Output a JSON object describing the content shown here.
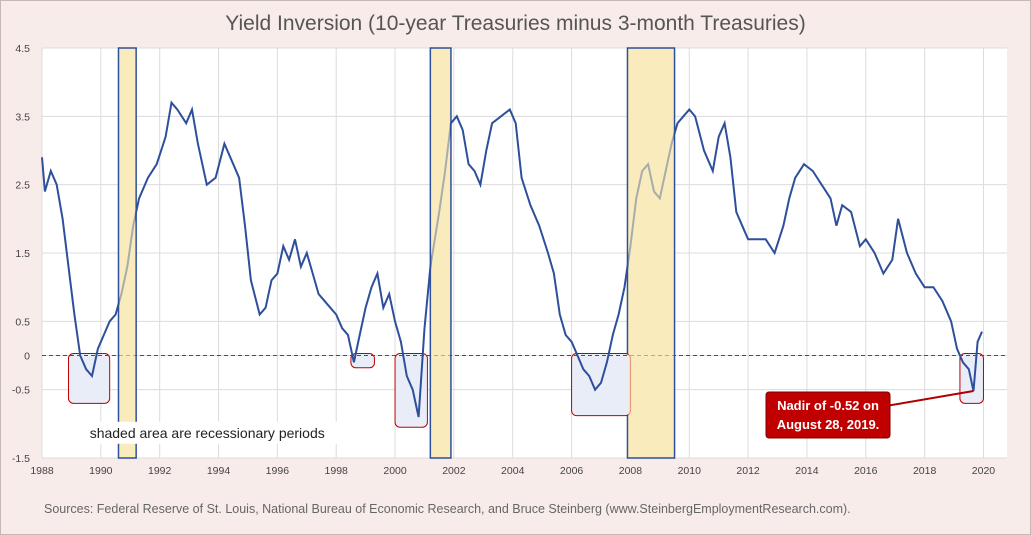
{
  "chart_data": {
    "type": "line",
    "title": "Yield Inversion (10-year Treasuries minus 3-month Treasuries)",
    "xlabel": "",
    "ylabel": "",
    "xlim": [
      1988,
      2020.8
    ],
    "ylim": [
      -1.5,
      4.5
    ],
    "y_ticks": [
      "4.5",
      "3.5",
      "2.5",
      "1.5",
      "0.5",
      "0",
      "-0.5",
      "-1.5"
    ],
    "y_tick_values": [
      4.5,
      3.5,
      2.5,
      1.5,
      0.5,
      0,
      -0.5,
      -1.5
    ],
    "x_ticks": [
      "1988",
      "1990",
      "1992",
      "1994",
      "1996",
      "1998",
      "2000",
      "2002",
      "2004",
      "2006",
      "2008",
      "2010",
      "2012",
      "2014",
      "2016",
      "2018",
      "2020"
    ],
    "grid": true,
    "series": [
      {
        "color": "#2e4f9a",
        "x": [
          1988.0,
          1988.1,
          1988.3,
          1988.5,
          1988.7,
          1988.9,
          1989.1,
          1989.3,
          1989.5,
          1989.7,
          1989.9,
          1990.1,
          1990.3,
          1990.5,
          1990.7,
          1990.9,
          1991.1,
          1991.3,
          1991.6,
          1991.9,
          1992.2,
          1992.4,
          1992.6,
          1992.9,
          1993.1,
          1993.3,
          1993.6,
          1993.9,
          1994.2,
          1994.4,
          1994.7,
          1994.9,
          1995.1,
          1995.4,
          1995.6,
          1995.8,
          1996.0,
          1996.2,
          1996.4,
          1996.6,
          1996.8,
          1997.0,
          1997.2,
          1997.4,
          1997.6,
          1997.8,
          1998.0,
          1998.2,
          1998.4,
          1998.6,
          1998.8,
          1999.0,
          1999.2,
          1999.4,
          1999.6,
          1999.8,
          2000.0,
          2000.2,
          2000.4,
          2000.6,
          2000.8,
          2001.0,
          2001.2,
          2001.5,
          2001.7,
          2001.9,
          2002.1,
          2002.3,
          2002.5,
          2002.7,
          2002.9,
          2003.1,
          2003.3,
          2003.6,
          2003.9,
          2004.1,
          2004.3,
          2004.6,
          2004.9,
          2005.2,
          2005.4,
          2005.6,
          2005.8,
          2006.0,
          2006.2,
          2006.4,
          2006.6,
          2006.8,
          2007.0,
          2007.2,
          2007.4,
          2007.6,
          2007.8,
          2008.0,
          2008.2,
          2008.4,
          2008.6,
          2008.8,
          2009.0,
          2009.2,
          2009.4,
          2009.6,
          2009.8,
          2010.0,
          2010.2,
          2010.5,
          2010.8,
          2011.0,
          2011.2,
          2011.4,
          2011.6,
          2011.8,
          2012.0,
          2012.3,
          2012.6,
          2012.9,
          2013.2,
          2013.4,
          2013.6,
          2013.9,
          2014.2,
          2014.5,
          2014.8,
          2015.0,
          2015.2,
          2015.5,
          2015.8,
          2016.0,
          2016.3,
          2016.6,
          2016.9,
          2017.1,
          2017.4,
          2017.7,
          2018.0,
          2018.3,
          2018.6,
          2018.9,
          2019.1,
          2019.3,
          2019.5,
          2019.66,
          2019.8,
          2019.95
        ],
        "y": [
          2.9,
          2.4,
          2.7,
          2.5,
          2.0,
          1.3,
          0.6,
          0.0,
          -0.2,
          -0.3,
          0.1,
          0.3,
          0.5,
          0.6,
          0.9,
          1.3,
          1.9,
          2.3,
          2.6,
          2.8,
          3.2,
          3.7,
          3.6,
          3.4,
          3.6,
          3.1,
          2.5,
          2.6,
          3.1,
          2.9,
          2.6,
          1.9,
          1.1,
          0.6,
          0.7,
          1.1,
          1.2,
          1.6,
          1.4,
          1.7,
          1.3,
          1.5,
          1.2,
          0.9,
          0.8,
          0.7,
          0.6,
          0.4,
          0.3,
          -0.1,
          0.3,
          0.7,
          1.0,
          1.2,
          0.7,
          0.9,
          0.5,
          0.2,
          -0.3,
          -0.5,
          -0.9,
          0.4,
          1.3,
          2.1,
          2.7,
          3.4,
          3.5,
          3.3,
          2.8,
          2.7,
          2.5,
          3.0,
          3.4,
          3.5,
          3.6,
          3.4,
          2.6,
          2.2,
          1.9,
          1.5,
          1.2,
          0.6,
          0.3,
          0.2,
          0.0,
          -0.2,
          -0.3,
          -0.5,
          -0.4,
          -0.1,
          0.3,
          0.6,
          1.0,
          1.6,
          2.3,
          2.7,
          2.8,
          2.4,
          2.3,
          2.7,
          3.1,
          3.4,
          3.5,
          3.6,
          3.5,
          3.0,
          2.7,
          3.2,
          3.4,
          2.9,
          2.1,
          1.9,
          1.7,
          1.7,
          1.7,
          1.5,
          1.9,
          2.3,
          2.6,
          2.8,
          2.7,
          2.5,
          2.3,
          1.9,
          2.2,
          2.1,
          1.6,
          1.7,
          1.5,
          1.2,
          1.4,
          2.0,
          1.5,
          1.2,
          1.0,
          1.0,
          0.8,
          0.5,
          0.1,
          -0.1,
          -0.2,
          -0.52,
          0.2,
          0.35
        ]
      }
    ],
    "recessions": [
      [
        1990.6,
        1991.2
      ],
      [
        2001.2,
        2001.9
      ],
      [
        2007.9,
        2009.5
      ]
    ],
    "inversion_boxes": [
      {
        "x": [
          1988.9,
          1990.3
        ],
        "y": [
          -0.7,
          0
        ]
      },
      {
        "x": [
          1998.5,
          1999.3
        ],
        "y": [
          -0.18,
          0
        ]
      },
      {
        "x": [
          2000.0,
          2001.1
        ],
        "y": [
          -1.05,
          0
        ]
      },
      {
        "x": [
          2006.0,
          2008.0
        ],
        "y": [
          -0.88,
          0
        ]
      },
      {
        "x": [
          2019.2,
          2020.0
        ],
        "y": [
          -0.7,
          0
        ]
      }
    ],
    "recession_note": "shaded area are recessionary periods",
    "callout": {
      "text_line1": "Nadir of -0.52 on",
      "text_line2": "August 28, 2019.",
      "x": 2019.66,
      "y": -0.52
    },
    "colors": {
      "line": "#2e4f9a",
      "recession_fill": "#f9ebbb",
      "recession_border": "#2e4f9a",
      "box_fill": "#e9edf8",
      "box_border": "#c00000",
      "callout_fill": "#c00000",
      "frame": "#f8ecea"
    }
  },
  "sources": "Sources: Federal Reserve of St. Louis, National Bureau of Economic Research, and Bruce Steinberg (www.SteinbergEmploymentResearch.com)."
}
